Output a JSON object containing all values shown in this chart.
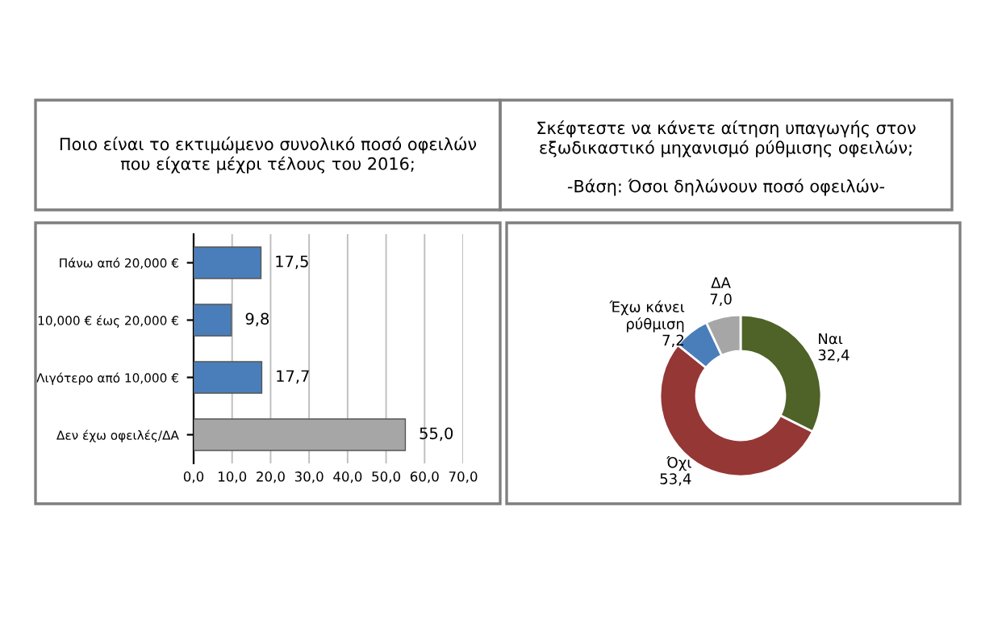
{
  "chart_data": [
    {
      "type": "bar",
      "orientation": "horizontal",
      "title": "Ποιο είναι το εκτιμώμενο συνολικό ποσό οφειλών\nπου είχατε μέχρι τέλους του 2016;",
      "categories": [
        "Πάνω από 20,000 €",
        "10,000 € έως 20,000 €",
        "Λιγότερο από 10,000 €",
        "Δεν έχω οφειλές/ΔΑ"
      ],
      "values": [
        17.5,
        9.8,
        17.7,
        55.0
      ],
      "colors": [
        "#4a7ebb",
        "#4a7ebb",
        "#4a7ebb",
        "#a6a6a6"
      ],
      "value_labels": [
        "17,5",
        "9,8",
        "17,7",
        "55,0"
      ],
      "xlim": [
        0,
        70
      ],
      "xticks": [
        {
          "value": 0,
          "label": "0,0"
        },
        {
          "value": 10,
          "label": "10,0"
        },
        {
          "value": 20,
          "label": "20,0"
        },
        {
          "value": 30,
          "label": "30,0"
        },
        {
          "value": 40,
          "label": "40,0"
        },
        {
          "value": 50,
          "label": "50,0"
        },
        {
          "value": 60,
          "label": "60,0"
        },
        {
          "value": 70,
          "label": "70,0"
        }
      ],
      "grid": "x"
    },
    {
      "type": "donut",
      "title": "Σκέφτεστε να κάνετε αίτηση υπαγωγής στον\nεξωδικαστικό μηχανισμό ρύθμισης οφειλών;",
      "subtitle": "-Βάση: Όσοι δηλώνουν ποσό οφειλών-",
      "categories": [
        "Ναι",
        "Όχι",
        "Έχω κάνει\nρύθμιση",
        "ΔΑ"
      ],
      "values": [
        32.4,
        53.4,
        7.2,
        7.0
      ],
      "colors": [
        "#4f6228",
        "#953735",
        "#4a7ebb",
        "#a6a6a6"
      ],
      "value_labels": [
        "32,4",
        "53,4",
        "7,2",
        "7,0"
      ]
    }
  ]
}
